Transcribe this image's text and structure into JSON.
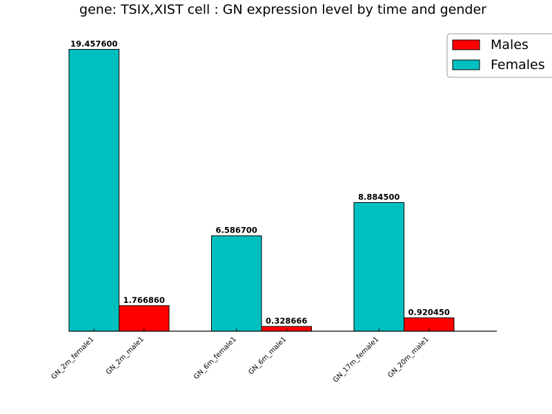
{
  "chart_data": {
    "type": "bar",
    "title": "gene: TSIX,XIST cell : GN expression level by time and gender",
    "xlabel": "",
    "ylabel": "",
    "ylim": [
      0,
      20.5
    ],
    "grid": false,
    "legend_position": "top-right",
    "categories": [
      "GN_2m_female1",
      "GN_2m_male1",
      "GN_6m_female1",
      "GN_6m_male1",
      "GN_17m_female1",
      "GN_20m_male1"
    ],
    "series": [
      {
        "name": "Males",
        "color": "#ff0000",
        "values": [
          null,
          1.76686,
          null,
          0.328666,
          null,
          0.92045
        ]
      },
      {
        "name": "Females",
        "color": "#00bfbf",
        "values": [
          19.4576,
          null,
          6.5867,
          null,
          8.8845,
          null
        ]
      }
    ],
    "bars": [
      {
        "category": "GN_2m_female1",
        "series": "Females",
        "value": 19.4576,
        "label": "19.457600"
      },
      {
        "category": "GN_2m_male1",
        "series": "Males",
        "value": 1.76686,
        "label": "1.766860"
      },
      {
        "category": "GN_6m_female1",
        "series": "Females",
        "value": 6.5867,
        "label": "6.586700"
      },
      {
        "category": "GN_6m_male1",
        "series": "Males",
        "value": 0.328666,
        "label": "0.328666"
      },
      {
        "category": "GN_17m_female1",
        "series": "Females",
        "value": 8.8845,
        "label": "8.884500"
      },
      {
        "category": "GN_20m_male1",
        "series": "Males",
        "value": 0.92045,
        "label": "0.920450"
      }
    ],
    "legend": [
      "Males",
      "Females"
    ]
  }
}
